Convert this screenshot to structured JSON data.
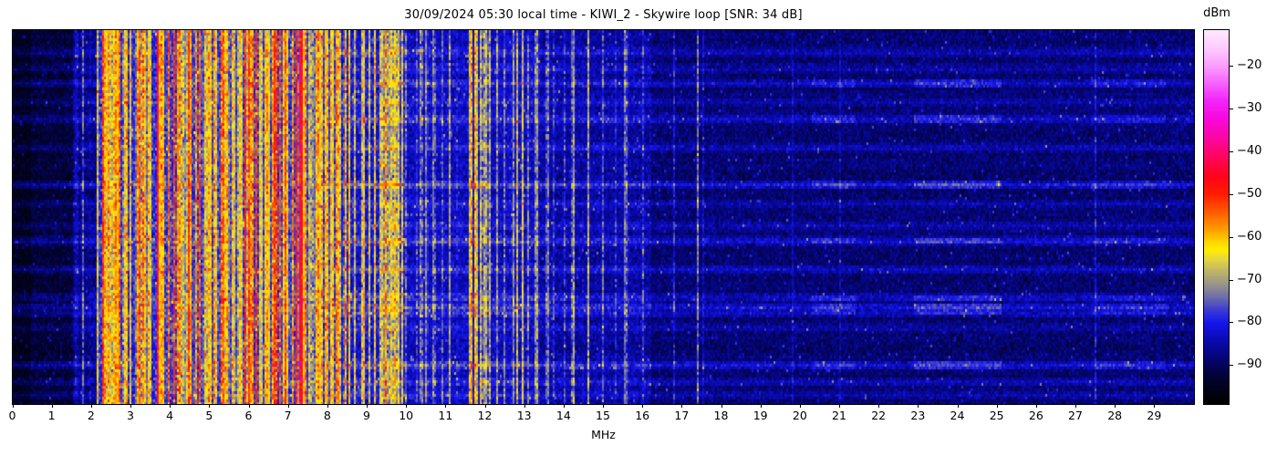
{
  "chart_data": {
    "type": "heatmap",
    "subtype": "radio-spectrogram-waterfall",
    "title": "30/09/2024 05:30 local time - KIWI_2 - Skywire loop [SNR: 34 dB]",
    "xlabel": "MHz",
    "x_range_mhz": [
      0,
      30
    ],
    "x_ticks": [
      0,
      1,
      2,
      3,
      4,
      5,
      6,
      7,
      8,
      9,
      10,
      11,
      12,
      13,
      14,
      15,
      16,
      17,
      18,
      19,
      20,
      21,
      22,
      23,
      24,
      25,
      26,
      27,
      28,
      29
    ],
    "grid": false,
    "legend_position": "none",
    "colorbar": {
      "label": "dBm",
      "position": "right",
      "ticks": [
        -20,
        -30,
        -40,
        -50,
        -60,
        -70,
        -80,
        -90
      ],
      "range_dbm": [
        -99,
        -11.5
      ],
      "stops": [
        [
          -99,
          "#000000"
        ],
        [
          -95,
          "#02021e"
        ],
        [
          -92,
          "#03033c"
        ],
        [
          -88,
          "#05057a"
        ],
        [
          -84,
          "#0a0ab4"
        ],
        [
          -80,
          "#1616ee"
        ],
        [
          -77,
          "#3c3cd2"
        ],
        [
          -74,
          "#6e6eaa"
        ],
        [
          -71,
          "#9a9688"
        ],
        [
          -68,
          "#beb468"
        ],
        [
          -65,
          "#e8d83e"
        ],
        [
          -63,
          "#ffee00"
        ],
        [
          -61,
          "#ffd400"
        ],
        [
          -58,
          "#ff9a00"
        ],
        [
          -54,
          "#ff5a00"
        ],
        [
          -50,
          "#ff1e00"
        ],
        [
          -46,
          "#ff0418"
        ],
        [
          -42,
          "#fe0550"
        ],
        [
          -37,
          "#fb07a0"
        ],
        [
          -32,
          "#f808e0"
        ],
        [
          -28,
          "#f325fa"
        ],
        [
          -24,
          "#f760fd"
        ],
        [
          -20,
          "#fa9bfe"
        ],
        [
          -16,
          "#fdc8ff"
        ],
        [
          -11.5,
          "#ffe9ff"
        ]
      ]
    },
    "spectral_profile": {
      "noise_floor_bands": [
        {
          "f0": 0.0,
          "f1": 0.45,
          "base": -95.0,
          "noise": 2.5,
          "stripes": 0,
          "smin": -90,
          "smax": -88
        },
        {
          "f0": 0.45,
          "f1": 1.55,
          "base": -92.5,
          "noise": 3.5,
          "stripes": 0,
          "smin": -90,
          "smax": -88
        },
        {
          "f0": 1.55,
          "f1": 2.15,
          "base": -87.5,
          "noise": 4.0,
          "stripes": 2,
          "smin": -80,
          "smax": -74
        },
        {
          "f0": 2.15,
          "f1": 3.65,
          "base": -78.5,
          "noise": 5.0,
          "stripes": 26,
          "smin": -70,
          "smax": -50
        },
        {
          "f0": 3.65,
          "f1": 8.25,
          "base": -77.0,
          "noise": 5.0,
          "stripes": 48,
          "smin": -72,
          "smax": -48
        },
        {
          "f0": 8.25,
          "f1": 10.0,
          "base": -81.5,
          "noise": 4.5,
          "stripes": 12,
          "smin": -70,
          "smax": -56
        },
        {
          "f0": 10.0,
          "f1": 13.4,
          "base": -83.5,
          "noise": 4.0,
          "stripes": 10,
          "smin": -76,
          "smax": -62
        },
        {
          "f0": 13.4,
          "f1": 16.2,
          "base": -85.5,
          "noise": 4.0,
          "stripes": 5,
          "smin": -78,
          "smax": -66
        },
        {
          "f0": 16.2,
          "f1": 30.0,
          "base": -88.5,
          "noise": 3.5,
          "stripes": 6,
          "smin": -84,
          "smax": -78
        }
      ],
      "carriers_mhz_dbm": [
        [
          1.62,
          -73
        ],
        [
          1.98,
          -80
        ],
        [
          2.23,
          -70
        ],
        [
          2.33,
          -58
        ],
        [
          2.42,
          -52
        ],
        [
          2.5,
          -55
        ],
        [
          2.56,
          -60
        ],
        [
          2.7,
          -50
        ],
        [
          2.88,
          -53
        ],
        [
          3.0,
          -58
        ],
        [
          3.2,
          -50
        ],
        [
          3.33,
          -48
        ],
        [
          3.48,
          -55
        ],
        [
          3.68,
          -42,
          0.02
        ],
        [
          3.8,
          -50
        ],
        [
          3.95,
          -49
        ],
        [
          4.1,
          -52
        ],
        [
          4.2,
          -54
        ],
        [
          4.35,
          -58
        ],
        [
          4.47,
          -51
        ],
        [
          4.65,
          -55
        ],
        [
          4.76,
          -48
        ],
        [
          4.9,
          -56
        ],
        [
          5.0,
          -50
        ],
        [
          5.15,
          -57
        ],
        [
          5.3,
          -53
        ],
        [
          5.45,
          -57
        ],
        [
          5.6,
          -52
        ],
        [
          5.75,
          -55
        ],
        [
          5.9,
          -47
        ],
        [
          6.0,
          -52
        ],
        [
          6.07,
          -46
        ],
        [
          6.19,
          -50
        ],
        [
          6.3,
          -54
        ],
        [
          6.45,
          -52
        ],
        [
          6.6,
          -56
        ],
        [
          6.7,
          -50
        ],
        [
          6.8,
          -47
        ],
        [
          6.95,
          -53
        ],
        [
          7.1,
          -51
        ],
        [
          7.2,
          -47
        ],
        [
          7.3,
          -44
        ],
        [
          7.35,
          -40,
          0.025
        ],
        [
          7.42,
          -48
        ],
        [
          7.55,
          -57
        ],
        [
          7.7,
          -54
        ],
        [
          7.85,
          -58
        ],
        [
          8.0,
          -56
        ],
        [
          8.1,
          -60
        ],
        [
          8.33,
          -62
        ],
        [
          8.46,
          -59
        ],
        [
          8.55,
          -63
        ],
        [
          8.7,
          -61
        ],
        [
          8.9,
          -56
        ],
        [
          9.05,
          -64
        ],
        [
          9.2,
          -62
        ],
        [
          9.4,
          -58
        ],
        [
          9.5,
          -61
        ],
        [
          9.6,
          -59
        ],
        [
          9.7,
          -60
        ],
        [
          9.78,
          -57
        ],
        [
          9.9,
          -62
        ],
        [
          10.0,
          -68
        ],
        [
          10.25,
          -72
        ],
        [
          10.5,
          -70
        ],
        [
          10.7,
          -64
        ],
        [
          10.9,
          -71
        ],
        [
          11.1,
          -70
        ],
        [
          11.3,
          -72
        ],
        [
          11.6,
          -66
        ],
        [
          11.66,
          -56
        ],
        [
          11.8,
          -64
        ],
        [
          11.9,
          -61
        ],
        [
          12.0,
          -66
        ],
        [
          12.1,
          -63
        ],
        [
          12.3,
          -72
        ],
        [
          12.5,
          -68
        ],
        [
          12.65,
          -71
        ],
        [
          12.8,
          -64
        ],
        [
          12.95,
          -67
        ],
        [
          13.1,
          -69
        ],
        [
          13.28,
          -71
        ],
        [
          13.57,
          -69
        ],
        [
          13.75,
          -73
        ],
        [
          14.0,
          -72
        ],
        [
          14.22,
          -68
        ],
        [
          14.5,
          -74
        ],
        [
          15.0,
          -71
        ],
        [
          15.3,
          -74
        ],
        [
          15.75,
          -59,
          0.02
        ],
        [
          16.0,
          -75
        ],
        [
          16.8,
          -79
        ],
        [
          17.4,
          -72,
          0.015
        ],
        [
          17.55,
          -80
        ],
        [
          17.75,
          -78
        ],
        [
          18.25,
          -80
        ],
        [
          18.9,
          -82
        ],
        [
          19.8,
          -81
        ],
        [
          21.45,
          -80
        ],
        [
          22.8,
          -83
        ],
        [
          24.0,
          -83
        ],
        [
          25.3,
          -81
        ],
        [
          26.5,
          -83
        ],
        [
          27.5,
          -82
        ],
        [
          28.6,
          -82
        ]
      ],
      "time_streaks_rowfrac_boost": [
        [
          0.055,
          5
        ],
        [
          0.1,
          4
        ],
        [
          0.14,
          6
        ],
        [
          0.19,
          4
        ],
        [
          0.235,
          7
        ],
        [
          0.31,
          5
        ],
        [
          0.41,
          8
        ],
        [
          0.46,
          4
        ],
        [
          0.52,
          4
        ],
        [
          0.56,
          7
        ],
        [
          0.635,
          5
        ],
        [
          0.71,
          6
        ],
        [
          0.735,
          7
        ],
        [
          0.75,
          6
        ],
        [
          0.79,
          4
        ],
        [
          0.89,
          7
        ],
        [
          0.935,
          5
        ],
        [
          0.97,
          4
        ]
      ],
      "streak_hot_segments_mhz": [
        [
          20.3,
          21.4,
          4
        ],
        [
          22.9,
          25.1,
          5
        ],
        [
          27.4,
          29.3,
          3
        ]
      ]
    }
  }
}
